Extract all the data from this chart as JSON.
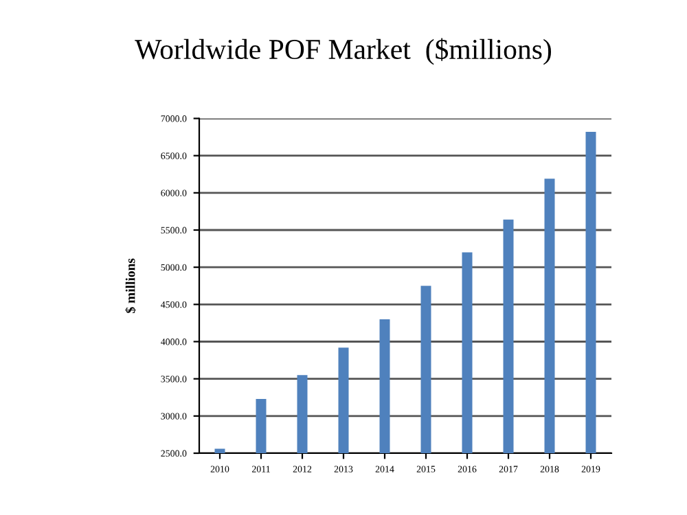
{
  "chart_data": {
    "type": "bar",
    "title": "Worldwide POF Market  ($millions)",
    "ylabel": "$ millions",
    "categories": [
      "2010",
      "2011",
      "2012",
      "2013",
      "2014",
      "2015",
      "2016",
      "2017",
      "2018",
      "2019"
    ],
    "values": [
      2560,
      3230,
      3550,
      3920,
      4300,
      4750,
      5200,
      5640,
      6190,
      6820
    ],
    "color": "#4f81bd",
    "ylim": [
      2500,
      7000
    ],
    "yticks": [
      {
        "value": 2500,
        "label": "2500.0"
      },
      {
        "value": 3000,
        "label": "3000.0"
      },
      {
        "value": 3500,
        "label": "3500.0"
      },
      {
        "value": 4000,
        "label": "4000.0"
      },
      {
        "value": 4500,
        "label": "4500.0"
      },
      {
        "value": 5000,
        "label": "5000.0"
      },
      {
        "value": 5500,
        "label": "5500.0"
      },
      {
        "value": 6000,
        "label": "6000.0"
      },
      {
        "value": 6500,
        "label": "6500.0"
      },
      {
        "value": 7000,
        "label": "7000.0"
      }
    ],
    "grid": "y"
  }
}
